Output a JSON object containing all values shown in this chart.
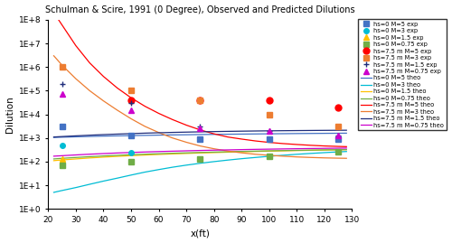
{
  "title": "Schulman & Scire, 1991 (0 Degree), Observed and Predicted Dilutions",
  "xlabel": "x(ft)",
  "ylabel": "Dilution",
  "xlim": [
    20,
    130
  ],
  "x_ticks": [
    20,
    30,
    40,
    50,
    60,
    70,
    80,
    90,
    100,
    110,
    120,
    130
  ],
  "exp_x": [
    25,
    50,
    75,
    100,
    125
  ],
  "obs_data": {
    "hs0_M5": [
      3000,
      1300,
      900,
      900,
      900
    ],
    "hs0_M3": [
      500,
      240,
      null,
      null,
      null
    ],
    "hs0_M1p5": [
      130,
      null,
      null,
      null,
      null
    ],
    "hs0_M0p75": [
      70,
      100,
      130,
      175,
      250
    ],
    "hs7p5_M5": [
      null,
      40000,
      40000,
      40000,
      20000
    ],
    "hs7p5_M3": [
      1000000,
      100000,
      40000,
      10000,
      3000
    ],
    "hs7p5_M1p5": [
      200000,
      30000,
      3000,
      2000,
      1300
    ],
    "hs7p5_M0p75": [
      70000,
      15000,
      2500,
      2000,
      1300
    ]
  },
  "theo_x": [
    22,
    25,
    30,
    35,
    40,
    45,
    50,
    55,
    60,
    65,
    70,
    75,
    80,
    85,
    90,
    95,
    100,
    105,
    110,
    115,
    120,
    125,
    128
  ],
  "theo_data": {
    "hs0_M5": [
      1050,
      1080,
      1120,
      1160,
      1200,
      1230,
      1260,
      1290,
      1320,
      1350,
      1370,
      1400,
      1420,
      1440,
      1460,
      1480,
      1500,
      1520,
      1540,
      1555,
      1570,
      1585,
      1595
    ],
    "hs0_M3": [
      5,
      6,
      8,
      11,
      15,
      20,
      27,
      36,
      46,
      58,
      71,
      85,
      100,
      116,
      133,
      150,
      168,
      186,
      204,
      222,
      240,
      258,
      268
    ],
    "hs0_M1p5": [
      110,
      118,
      130,
      143,
      155,
      167,
      179,
      190,
      201,
      212,
      222,
      232,
      241,
      251,
      260,
      269,
      277,
      285,
      293,
      301,
      308,
      315,
      319
    ],
    "hs0_M0p75": [
      130,
      138,
      150,
      162,
      174,
      185,
      196,
      206,
      216,
      226,
      235,
      244,
      253,
      262,
      270,
      278,
      286,
      293,
      300,
      307,
      314,
      320,
      324
    ],
    "hs7p5_M5": [
      200000000,
      60000000,
      8000000,
      1500000,
      400000,
      130000,
      50000,
      22000,
      11000,
      6000,
      3500,
      2200,
      1500,
      1100,
      900,
      750,
      650,
      580,
      530,
      490,
      460,
      440,
      430
    ],
    "hs7p5_M3": [
      3000000,
      1200000,
      320000,
      100000,
      37000,
      15000,
      6500,
      3100,
      1700,
      1000,
      660,
      460,
      350,
      280,
      235,
      205,
      185,
      170,
      158,
      150,
      144,
      140,
      138
    ],
    "hs7p5_M1p5": [
      1100,
      1150,
      1230,
      1310,
      1390,
      1460,
      1530,
      1600,
      1660,
      1720,
      1770,
      1820,
      1865,
      1905,
      1942,
      1975,
      2005,
      2032,
      2057,
      2079,
      2099,
      2116,
      2126
    ],
    "hs7p5_M0p75": [
      170,
      178,
      192,
      206,
      219,
      232,
      244,
      255,
      266,
      276,
      286,
      296,
      305,
      313,
      322,
      330,
      337,
      344,
      351,
      358,
      364,
      370,
      373
    ]
  },
  "colors": {
    "hs0_M5": "#4472c4",
    "hs0_M3": "#00bcd4",
    "hs0_M1p5": "#ffc000",
    "hs0_M0p75": "#70ad47",
    "hs7p5_M5": "#ff0000",
    "hs7p5_M3": "#ed7d31",
    "hs7p5_M1p5": "#1f2d7b",
    "hs7p5_M0p75": "#cc00cc"
  },
  "markers_exp": {
    "hs0_M5": [
      "s",
      4
    ],
    "hs0_M3": [
      "o",
      4
    ],
    "hs0_M1p5": [
      "^",
      4
    ],
    "hs0_M0p75": [
      "s",
      4
    ],
    "hs7p5_M5": [
      "o",
      5
    ],
    "hs7p5_M3": [
      "s",
      4
    ],
    "hs7p5_M1p5": [
      "+",
      5
    ],
    "hs7p5_M0p75": [
      "^",
      4
    ]
  },
  "legend_labels": {
    "hs0_M5_exp": "hs=0 M=5 exp",
    "hs0_M3_exp": "hs=0 M=3 exp",
    "hs0_M1p5_exp": "hs=0 M=1.5 exp",
    "hs0_M0p75_exp": "hs=0 M=0.75 exp",
    "hs7p5_M5_exp": "hs=7.5 m M=5 exp",
    "hs7p5_M3_exp": "hs=7.5 m M=3 exp",
    "hs7p5_M1p5_exp": "hs=7.5 m M=1.5 exp",
    "hs7p5_M0p75_exp": "hs=7.5 m M=0.75 exp",
    "hs0_M5_theo": "hs=0 M=5 theo",
    "hs0_M3_theo": "hs=0 M=3 theo",
    "hs0_M1p5_theo": "hs=0 M=1.5 theo",
    "hs0_M0p75_theo": "hs=0 M=0.75 theo",
    "hs7p5_M5_theo": "hs=7.5 m M=5 theo",
    "hs7p5_M3_theo": "hs=7.5 m M=3 theo",
    "hs7p5_M1p5_theo": "hs=7.5 m M=1.5 theo",
    "hs7p5_M0p75_theo": "hs=7.5 m M=0.75 theo"
  }
}
